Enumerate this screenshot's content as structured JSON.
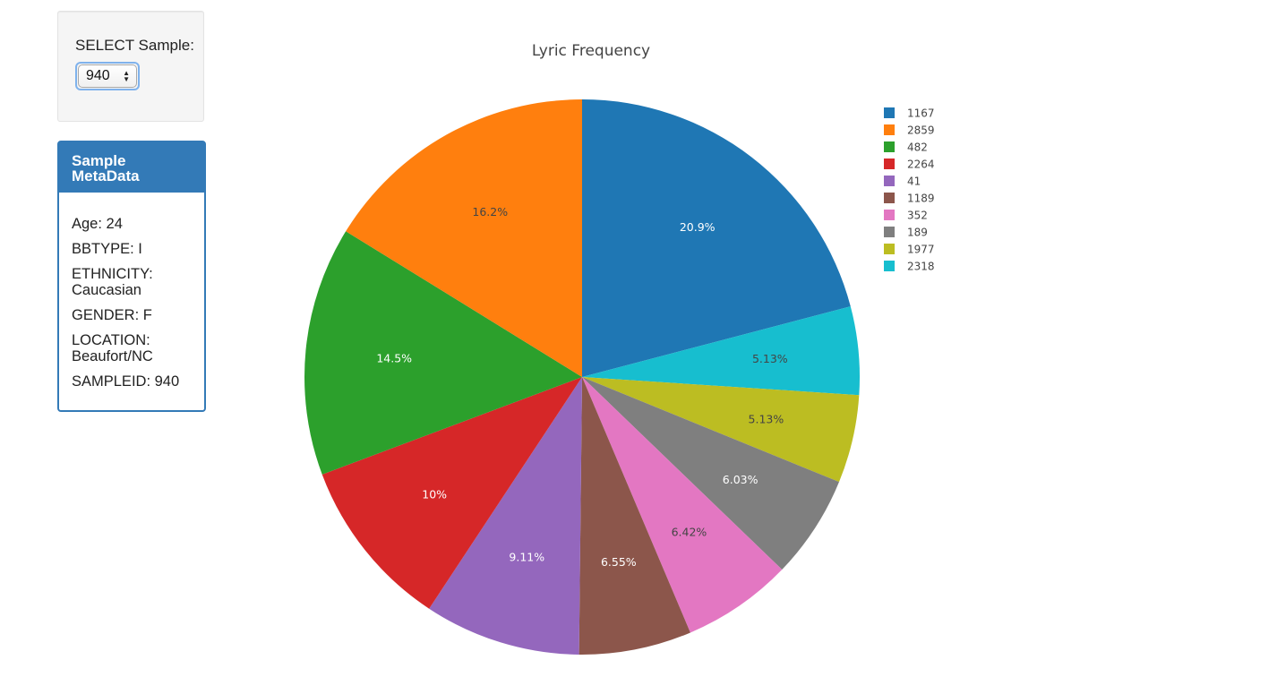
{
  "selector": {
    "title": "SELECT Sample:",
    "selected_value": "940"
  },
  "metadata_panel": {
    "heading": "Sample MetaData",
    "items": [
      "Age: 24",
      "BBTYPE: I",
      "ETHNICITY: Caucasian",
      "GENDER: F",
      "LOCATION: Beaufort/NC",
      "SAMPLEID: 940"
    ]
  },
  "chart_data": {
    "type": "pie",
    "title": "Lyric Frequency",
    "legend_position": "right",
    "slices": [
      {
        "label": "1167",
        "percent": 20.9,
        "text": "20.9%",
        "color": "#1f77b4",
        "text_color": "#ffffff"
      },
      {
        "label": "2318",
        "percent": 5.13,
        "text": "5.13%",
        "color": "#17becf",
        "text_color": "#444444"
      },
      {
        "label": "1977",
        "percent": 5.13,
        "text": "5.13%",
        "color": "#bcbd22",
        "text_color": "#444444"
      },
      {
        "label": "189",
        "percent": 6.03,
        "text": "6.03%",
        "color": "#7f7f7f",
        "text_color": "#ffffff"
      },
      {
        "label": "352",
        "percent": 6.42,
        "text": "6.42%",
        "color": "#e377c2",
        "text_color": "#444444"
      },
      {
        "label": "1189",
        "percent": 6.55,
        "text": "6.55%",
        "color": "#8c564b",
        "text_color": "#ffffff"
      },
      {
        "label": "41",
        "percent": 9.11,
        "text": "9.11%",
        "color": "#9467bd",
        "text_color": "#ffffff"
      },
      {
        "label": "2264",
        "percent": 10.0,
        "text": "10%",
        "color": "#d62728",
        "text_color": "#ffffff"
      },
      {
        "label": "482",
        "percent": 14.5,
        "text": "14.5%",
        "color": "#2ca02c",
        "text_color": "#ffffff"
      },
      {
        "label": "2859",
        "percent": 16.2,
        "text": "16.2%",
        "color": "#ff7f0e",
        "text_color": "#444444"
      }
    ],
    "legend_order": [
      "1167",
      "2859",
      "482",
      "2264",
      "41",
      "1189",
      "352",
      "189",
      "1977",
      "2318"
    ]
  }
}
